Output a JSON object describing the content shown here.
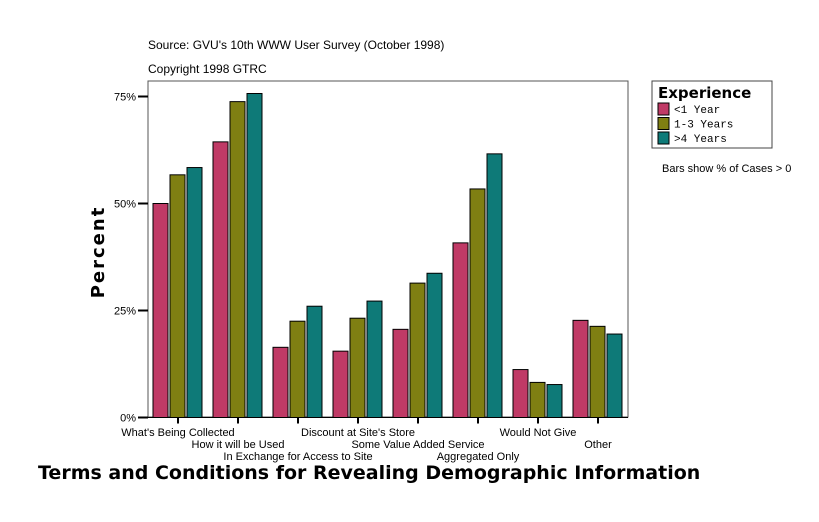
{
  "chart_data": {
    "type": "bar",
    "title": "Terms and Conditions for Revealing Demographic Information",
    "subtitle": [
      "Source: GVU's 10th WWW User Survey (October 1998)",
      "Copyright 1998 GTRC"
    ],
    "xlabel": "",
    "ylabel": "Percent",
    "ylim": [
      0,
      75
    ],
    "yticks": [
      "0%",
      "25%",
      "50%",
      "75%"
    ],
    "ytick_values": [
      0,
      25,
      50,
      75
    ],
    "grid": false,
    "legend": {
      "title": "Experience",
      "placement": "top-right"
    },
    "note": "Bars show % of Cases > 0",
    "categories": [
      "What's Being Collected",
      "How it will be Used",
      "In Exchange for Access to Site",
      "Discount at Site's Store",
      "Some Value Added Service",
      "Aggregated Only",
      "Would Not Give",
      "Other"
    ],
    "series": [
      {
        "name": "<1 Year",
        "color": "#c03a66",
        "values": [
          50.0,
          64.4,
          16.4,
          15.5,
          20.6,
          40.8,
          11.2,
          22.7
        ]
      },
      {
        "name": "1-3 Years",
        "color": "#7f7f12",
        "values": [
          56.7,
          73.8,
          22.5,
          23.2,
          31.4,
          53.4,
          8.2,
          21.3
        ]
      },
      {
        "name": ">4 Years",
        "color": "#0e7a78",
        "values": [
          58.4,
          75.7,
          26.0,
          27.2,
          33.7,
          61.6,
          7.7,
          19.5
        ]
      }
    ]
  }
}
